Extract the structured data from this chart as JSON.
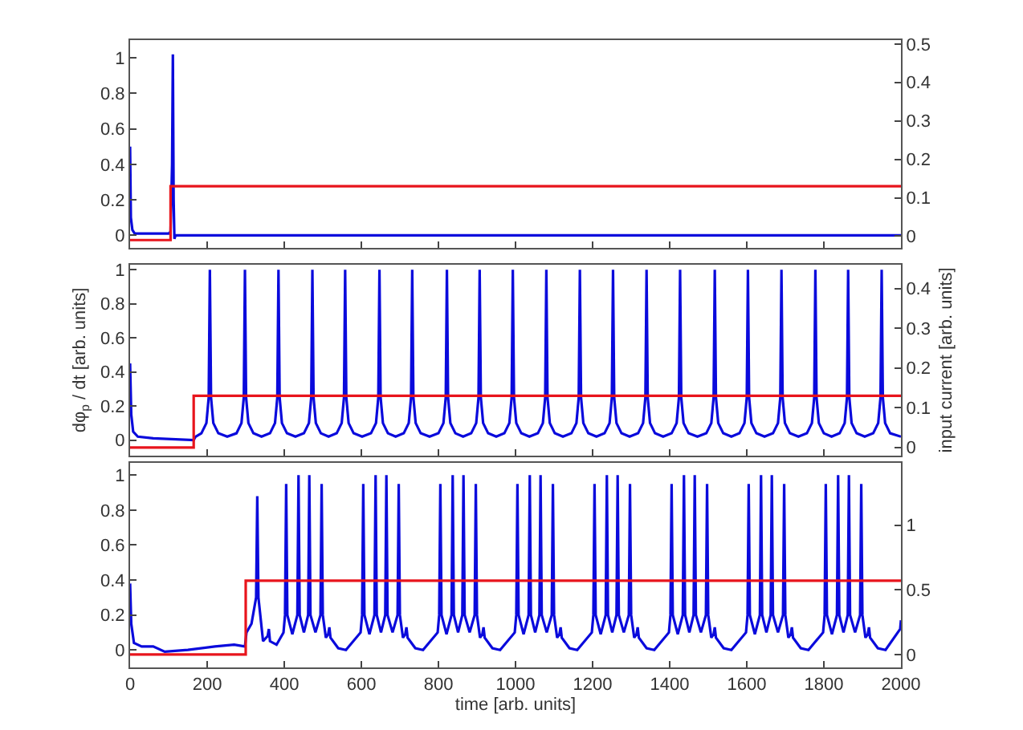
{
  "chart_data": [
    {
      "type": "line",
      "tick_labels": "y",
      "xlim": [
        0,
        2000
      ],
      "xticks": [
        0,
        200,
        400,
        600,
        800,
        1000,
        1200,
        1400,
        1600,
        1800,
        2000
      ],
      "ylim": [
        -0.07,
        1.1
      ],
      "yticks": [
        0,
        0.2,
        0.4,
        0.6,
        0.8,
        1
      ],
      "y2lim": [
        -0.03,
        0.51
      ],
      "y2ticks": [
        0,
        0.1,
        0.2,
        0.3,
        0.4,
        0.5
      ],
      "series": [
        {
          "color": "#0a0adc",
          "x": [
            0,
            2,
            6,
            12,
            100,
            105,
            109,
            111,
            113,
            115,
            118,
            2000
          ],
          "values": [
            0.5,
            0.1,
            0.03,
            0.01,
            0.01,
            0.02,
            0.4,
            1.02,
            0.2,
            -0.02,
            0,
            0
          ]
        },
        {
          "color": "#e8141c",
          "axis": "y2",
          "x": [
            0,
            105,
            105,
            2000
          ],
          "values": [
            -0.01,
            -0.01,
            0.13,
            0.13
          ]
        }
      ]
    },
    {
      "type": "line",
      "tick_labels": "y",
      "ylabel": "dφ$_{p}$ / dt [arb. units]",
      "y2label": "input current [arb. units]",
      "xlim": [
        0,
        2000
      ],
      "xticks": [
        0,
        200,
        400,
        600,
        800,
        1000,
        1200,
        1400,
        1600,
        1800,
        2000
      ],
      "ylim": [
        -0.09,
        1.03
      ],
      "yticks": [
        0,
        0.2,
        0.4,
        0.6,
        0.8,
        1
      ],
      "y2lim": [
        -0.02,
        0.46
      ],
      "y2ticks": [
        0,
        0.1,
        0.2,
        0.3,
        0.4
      ],
      "series": [
        {
          "color": "#0a0adc",
          "x": [
            0,
            3,
            8,
            20,
            60,
            165,
            170,
            185,
            198,
            204,
            207,
            210,
            216,
            229,
            252,
            276,
            289,
            295,
            298,
            301,
            307,
            320,
            341,
            363,
            376,
            382,
            385,
            388,
            394,
            407,
            429,
            451,
            464,
            470,
            473,
            476,
            482,
            495,
            515,
            536,
            549,
            555,
            558,
            561,
            567,
            580,
            602,
            625,
            638,
            644,
            647,
            650,
            656,
            669,
            689,
            710,
            723,
            729,
            732,
            735,
            741,
            754,
            777,
            800,
            813,
            819,
            822,
            825,
            831,
            844,
            864,
            885,
            898,
            904,
            907,
            910,
            916,
            929,
            950,
            971,
            984,
            990,
            993,
            996,
            1002,
            1015,
            1036,
            1058,
            1071,
            1077,
            1080,
            1083,
            1089,
            1102,
            1123,
            1145,
            1158,
            1164,
            1167,
            1170,
            1176,
            1189,
            1210,
            1231,
            1244,
            1250,
            1253,
            1256,
            1262,
            1275,
            1296,
            1318,
            1331,
            1337,
            1340,
            1343,
            1349,
            1362,
            1383,
            1405,
            1418,
            1424,
            1427,
            1430,
            1436,
            1449,
            1472,
            1495,
            1508,
            1514,
            1517,
            1520,
            1526,
            1539,
            1560,
            1581,
            1594,
            1600,
            1603,
            1606,
            1612,
            1625,
            1646,
            1668,
            1681,
            1687,
            1690,
            1693,
            1699,
            1712,
            1734,
            1756,
            1769,
            1775,
            1778,
            1781,
            1787,
            1800,
            1820,
            1841,
            1854,
            1860,
            1863,
            1866,
            1872,
            1885,
            1906,
            1928,
            1941,
            1947,
            1950,
            1953,
            1959,
            1972,
            2000
          ],
          "values": [
            0.45,
            0.15,
            0.05,
            0.02,
            0.01,
            0,
            0.02,
            0.04,
            0.1,
            0.25,
            1,
            0.25,
            0.1,
            0.04,
            0.02,
            0.04,
            0.1,
            0.25,
            1,
            0.25,
            0.1,
            0.04,
            0.02,
            0.04,
            0.1,
            0.25,
            1,
            0.25,
            0.1,
            0.04,
            0.02,
            0.04,
            0.1,
            0.25,
            1,
            0.25,
            0.1,
            0.04,
            0.02,
            0.04,
            0.1,
            0.25,
            1,
            0.25,
            0.1,
            0.04,
            0.02,
            0.04,
            0.1,
            0.25,
            1,
            0.25,
            0.1,
            0.04,
            0.02,
            0.04,
            0.1,
            0.25,
            1,
            0.25,
            0.1,
            0.04,
            0.02,
            0.04,
            0.1,
            0.25,
            1,
            0.25,
            0.1,
            0.04,
            0.02,
            0.04,
            0.1,
            0.25,
            1,
            0.25,
            0.1,
            0.04,
            0.02,
            0.04,
            0.1,
            0.25,
            1,
            0.25,
            0.1,
            0.04,
            0.02,
            0.04,
            0.1,
            0.25,
            1,
            0.25,
            0.1,
            0.04,
            0.02,
            0.04,
            0.1,
            0.25,
            1,
            0.25,
            0.1,
            0.04,
            0.02,
            0.04,
            0.1,
            0.25,
            1,
            0.25,
            0.1,
            0.04,
            0.02,
            0.04,
            0.1,
            0.25,
            1,
            0.25,
            0.1,
            0.04,
            0.02,
            0.04,
            0.1,
            0.25,
            1,
            0.25,
            0.1,
            0.04,
            0.02,
            0.04,
            0.1,
            0.25,
            1,
            0.25,
            0.1,
            0.04,
            0.02,
            0.04,
            0.1,
            0.25,
            1,
            0.25,
            0.1,
            0.04,
            0.02,
            0.04,
            0.1,
            0.25,
            1,
            0.25,
            0.1,
            0.04,
            0.02,
            0.04,
            0.1,
            0.25,
            1,
            0.25,
            0.1,
            0.04,
            0.02,
            0.04,
            0.1,
            0.25,
            1,
            0.25,
            0.1,
            0.04,
            0.02,
            0.04,
            0.1,
            0.25,
            1,
            0.25,
            0.1,
            0.04,
            0.02
          ]
        },
        {
          "color": "#e8141c",
          "axis": "y2",
          "x": [
            0,
            165,
            165,
            2000
          ],
          "values": [
            0,
            0,
            0.13,
            0.13
          ]
        }
      ]
    },
    {
      "type": "line",
      "xlabel": "time [arb. units]",
      "xlim": [
        0,
        2000
      ],
      "xticks": [
        0,
        200,
        400,
        600,
        800,
        1000,
        1200,
        1400,
        1600,
        1800,
        2000
      ],
      "ylim": [
        -0.1,
        1.07
      ],
      "yticks": [
        0,
        0.2,
        0.4,
        0.6,
        0.8,
        1
      ],
      "y2lim": [
        -0.1,
        1.48
      ],
      "y2ticks": [
        0,
        0.5,
        1
      ],
      "series": [
        {
          "color": "#0a0adc",
          "x": [
            0,
            3,
            10,
            30,
            60,
            90,
            150,
            220,
            270,
            298,
            302,
            315,
            327,
            330,
            333,
            345,
            357,
            360,
            363,
            380,
            398,
            402,
            405,
            408,
            421,
            434,
            437,
            440,
            451,
            462,
            465,
            468,
            481,
            494,
            497,
            500,
            508,
            514,
            517,
            520,
            540,
            560,
            598,
            602,
            605,
            608,
            621,
            634,
            637,
            640,
            651,
            662,
            665,
            668,
            681,
            694,
            697,
            700,
            708,
            714,
            717,
            720,
            740,
            760,
            798,
            802,
            805,
            808,
            821,
            834,
            837,
            840,
            851,
            862,
            865,
            868,
            881,
            894,
            897,
            900,
            908,
            914,
            917,
            920,
            940,
            960,
            998,
            1002,
            1005,
            1008,
            1021,
            1034,
            1037,
            1040,
            1051,
            1062,
            1065,
            1068,
            1081,
            1094,
            1097,
            1100,
            1108,
            1114,
            1117,
            1120,
            1140,
            1160,
            1198,
            1202,
            1205,
            1208,
            1221,
            1234,
            1237,
            1240,
            1251,
            1262,
            1265,
            1268,
            1281,
            1294,
            1297,
            1300,
            1308,
            1314,
            1317,
            1320,
            1340,
            1360,
            1398,
            1402,
            1405,
            1408,
            1421,
            1434,
            1437,
            1440,
            1451,
            1462,
            1465,
            1468,
            1481,
            1494,
            1497,
            1500,
            1508,
            1514,
            1517,
            1520,
            1540,
            1560,
            1598,
            1602,
            1605,
            1608,
            1621,
            1634,
            1637,
            1640,
            1651,
            1662,
            1665,
            1668,
            1681,
            1694,
            1697,
            1700,
            1708,
            1714,
            1717,
            1720,
            1740,
            1760,
            1798,
            1802,
            1805,
            1808,
            1821,
            1834,
            1837,
            1840,
            1851,
            1862,
            1865,
            1868,
            1881,
            1894,
            1897,
            1900,
            1908,
            1914,
            1917,
            1920,
            1940,
            1960,
            1998,
            2000
          ],
          "values": [
            0.38,
            0.15,
            0.04,
            0.02,
            0.02,
            -0.01,
            0,
            0.02,
            0.03,
            0.02,
            0.1,
            0.15,
            0.3,
            0.88,
            0.3,
            0.05,
            0.08,
            0.12,
            0.05,
            0.03,
            0.1,
            0.2,
            0.95,
            0.2,
            0.09,
            0.2,
            1,
            0.2,
            0.1,
            0.2,
            1,
            0.2,
            0.1,
            0.2,
            0.95,
            0.2,
            0.07,
            0.09,
            0.13,
            0.07,
            0.01,
            0,
            0.1,
            0.2,
            0.95,
            0.2,
            0.09,
            0.2,
            1,
            0.2,
            0.1,
            0.2,
            1,
            0.2,
            0.1,
            0.2,
            0.95,
            0.2,
            0.07,
            0.09,
            0.13,
            0.07,
            0.01,
            0,
            0.1,
            0.2,
            0.95,
            0.2,
            0.09,
            0.2,
            1,
            0.2,
            0.1,
            0.2,
            1,
            0.2,
            0.1,
            0.2,
            0.95,
            0.2,
            0.07,
            0.09,
            0.13,
            0.07,
            0.01,
            0,
            0.1,
            0.2,
            0.95,
            0.2,
            0.09,
            0.2,
            1,
            0.2,
            0.1,
            0.2,
            1,
            0.2,
            0.1,
            0.2,
            0.95,
            0.2,
            0.07,
            0.09,
            0.13,
            0.07,
            0.01,
            0,
            0.1,
            0.2,
            0.95,
            0.2,
            0.09,
            0.2,
            1,
            0.2,
            0.1,
            0.2,
            1,
            0.2,
            0.1,
            0.2,
            0.95,
            0.2,
            0.07,
            0.09,
            0.13,
            0.07,
            0.01,
            0,
            0.1,
            0.2,
            0.95,
            0.2,
            0.09,
            0.2,
            1,
            0.2,
            0.1,
            0.2,
            1,
            0.2,
            0.1,
            0.2,
            0.95,
            0.2,
            0.07,
            0.09,
            0.13,
            0.07,
            0.01,
            0,
            0.1,
            0.2,
            0.95,
            0.2,
            0.09,
            0.2,
            1,
            0.2,
            0.1,
            0.2,
            1,
            0.2,
            0.1,
            0.2,
            0.95,
            0.2,
            0.07,
            0.09,
            0.13,
            0.07,
            0.01,
            0,
            0.1,
            0.2,
            0.95,
            0.2,
            0.09,
            0.2,
            1,
            0.2,
            0.1,
            0.2,
            1,
            0.2,
            0.1,
            0.2,
            0.95,
            0.2,
            0.07,
            0.09,
            0.13,
            0.07,
            0.01,
            0,
            0.12,
            0.17
          ]
        },
        {
          "color": "#e8141c",
          "axis": "y2",
          "x": [
            0,
            300,
            300,
            2000
          ],
          "values": [
            0,
            0,
            0.57,
            0.57
          ]
        }
      ]
    }
  ]
}
